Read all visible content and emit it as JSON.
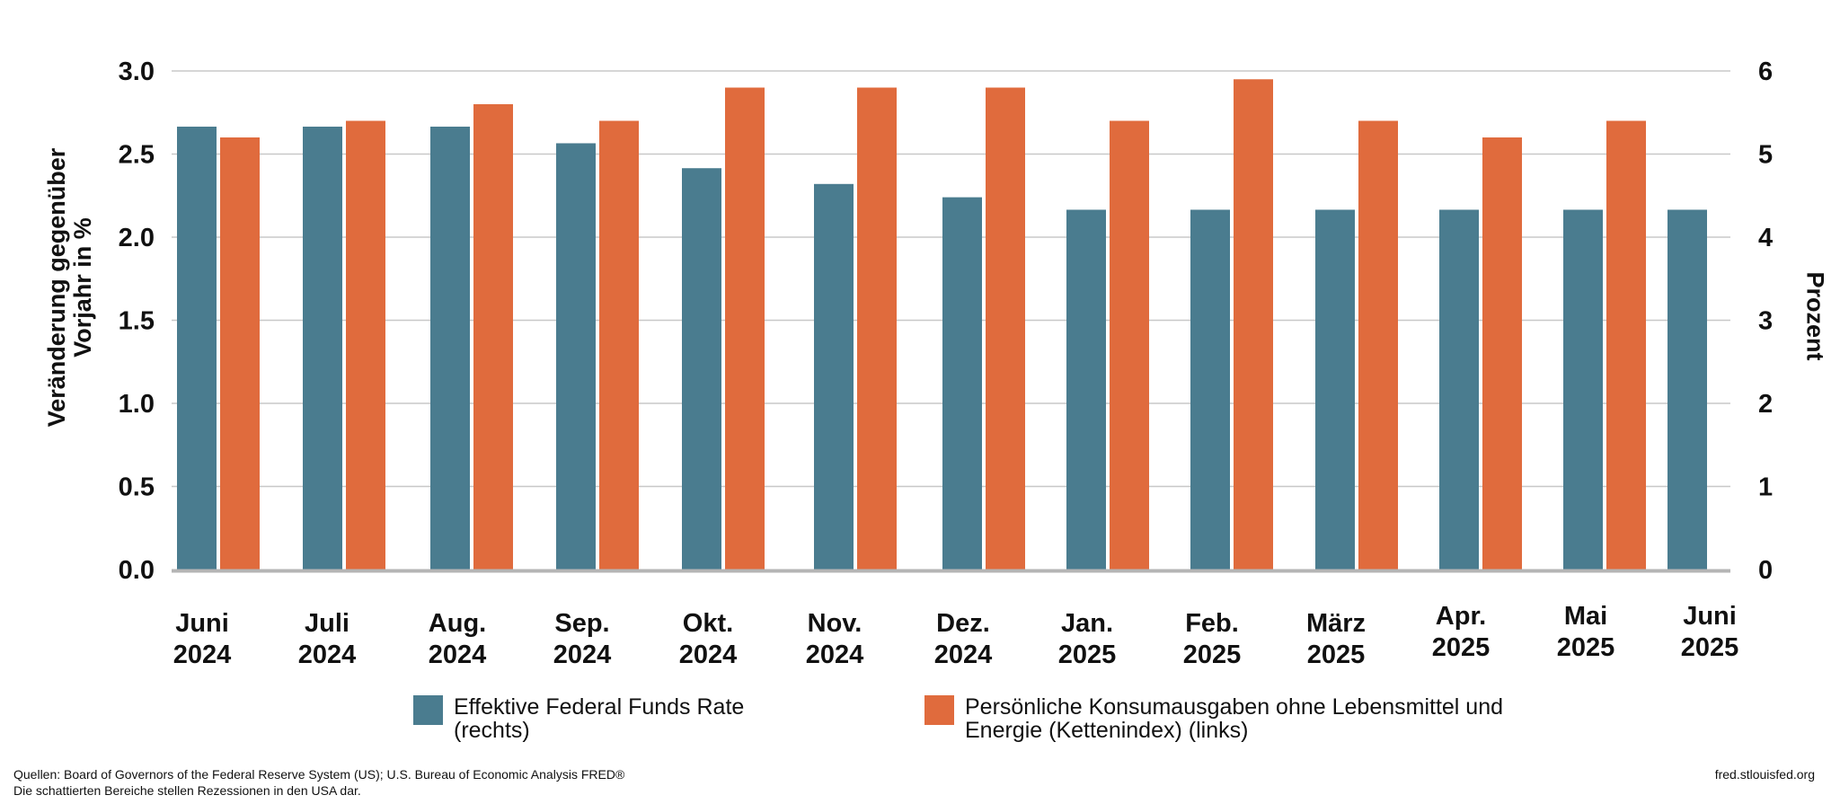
{
  "chart_data": {
    "type": "bar",
    "categories": [
      [
        "Juni",
        "2024"
      ],
      [
        "Juli",
        "2024"
      ],
      [
        "Aug.",
        "2024"
      ],
      [
        "Sep.",
        "2024"
      ],
      [
        "Okt.",
        "2024"
      ],
      [
        "Nov.",
        "2024"
      ],
      [
        "Dez.",
        "2024"
      ],
      [
        "Jan.",
        "2025"
      ],
      [
        "Feb.",
        "2025"
      ],
      [
        "März",
        "2025"
      ],
      [
        "Apr.",
        "2025"
      ],
      [
        "Mai",
        "2025"
      ],
      [
        "Juni",
        "2025"
      ]
    ],
    "series": [
      {
        "name": "Effektive Federal Funds Rate\n(rechts)",
        "axis": "right",
        "color": "#4a7c8f",
        "values": [
          5.33,
          5.33,
          5.33,
          5.13,
          4.83,
          4.64,
          4.48,
          4.33,
          4.33,
          4.33,
          4.33,
          4.33,
          4.33
        ]
      },
      {
        "name": "Persönliche Konsumausgaben ohne Lebensmittel und\nEnergie (Kettenindex) (links)",
        "axis": "left",
        "color": "#e06b3d",
        "values": [
          2.6,
          2.7,
          2.8,
          2.7,
          2.9,
          2.9,
          2.9,
          2.7,
          2.95,
          2.7,
          2.6,
          2.7,
          null
        ]
      }
    ],
    "ylabel": "Veränderung gegenüber\nVorjahr in %",
    "ylabel_right": "Prozent",
    "ylim": [
      0,
      3
    ],
    "ylim_right": [
      0,
      6
    ],
    "yticks": [
      "0.0",
      "0.5",
      "1.0",
      "1.5",
      "2.0",
      "2.5",
      "3.0"
    ],
    "yticks_right": [
      "0",
      "1",
      "2",
      "3",
      "4",
      "5",
      "6"
    ],
    "grid": true,
    "legend_position": "bottom"
  },
  "footer": {
    "source_line_1": "Quellen: Board of Governors of the Federal Reserve System (US); U.S. Bureau of Economic Analysis FRED®",
    "source_line_2": "Die schattierten Bereiche stellen Rezessionen in den USA dar.",
    "url": "fred.stlouisfed.org"
  },
  "colors": {
    "grid": "#c8c8c8",
    "baseline": "#b5b5b5"
  }
}
